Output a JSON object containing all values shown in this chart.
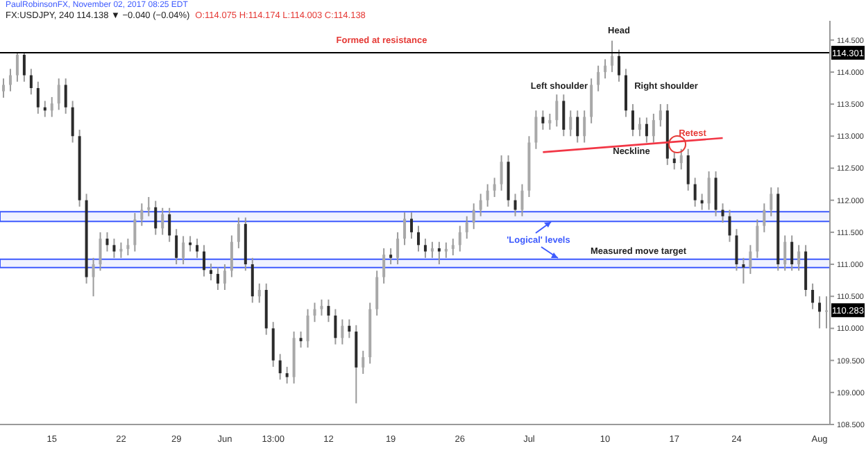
{
  "chart_data": {
    "type": "candlestick",
    "title": "FX:USDJPY, 240  114.138 ▼ −0.040 (−0.04%)",
    "subtitle": "O:114.075 H:114.174 L:114.003 C:114.138",
    "colors": [
      "#a8a8a8",
      "#a8a8a8",
      "#a8a8a8",
      "#2b2b2b",
      "#2b2b2b",
      "#2b2b2b",
      "#2b2b2b",
      "#a8a8a8",
      "#a8a8a8",
      "#2b2b2b",
      "#2b2b2b",
      "#2b2b2b",
      "#2b2b2b",
      "#a8a8a8",
      "#a8a8a8",
      "#2b2b2b",
      "#2b2b2b",
      "#a8a8a8",
      "#a8a8a8",
      "#a8a8a8",
      "#a8a8a8",
      "#a8a8a8",
      "#2b2b2b",
      "#a8a8a8",
      "#2b2b2b",
      "#2b2b2b",
      "#a8a8a8",
      "#2b2b2b",
      "#2b2b2b",
      "#2b2b2b",
      "#2b2b2b",
      "#2b2b2b",
      "#a8a8a8",
      "#a8a8a8",
      "#a8a8a8",
      "#2b2b2b",
      "#2b2b2b",
      "#a8a8a8",
      "#2b2b2b",
      "#2b2b2b",
      "#2b2b2b",
      "#2b2b2b",
      "#a8a8a8",
      "#2b2b2b",
      "#a8a8a8",
      "#a8a8a8",
      "#a8a8a8",
      "#2b2b2b",
      "#2b2b2b",
      "#a8a8a8",
      "#2b2b2b",
      "#2b2b2b",
      "#a8a8a8",
      "#a8a8a8",
      "#a8a8a8",
      "#a8a8a8",
      "#2b2b2b",
      "#a8a8a8",
      "#a8a8a8",
      "#2b2b2b",
      "#2b2b2b",
      "#2b2b2b",
      "#a8a8a8",
      "#2b2b2b",
      "#a8a8a8",
      "#a8a8a8",
      "#a8a8a8",
      "#a8a8a8",
      "#a8a8a8",
      "#a8a8a8",
      "#a8a8a8",
      "#a8a8a8",
      "#a8a8a8",
      "#2b2b2b",
      "#2b2b2b",
      "#a8a8a8",
      "#a8a8a8",
      "#a8a8a8",
      "#2b2b2b",
      "#a8a8a8",
      "#a8a8a8",
      "#2b2b2b",
      "#a8a8a8",
      "#2b2b2b",
      "#a8a8a8",
      "#a8a8a8",
      "#a8a8a8",
      "#a8a8a8",
      "#a8a8a8",
      "#2b2b2b",
      "#2b2b2b",
      "#2b2b2b",
      "#a8a8a8",
      "#2b2b2b",
      "#a8a8a8",
      "#a8a8a8",
      "#2b2b2b",
      "#2b2b2b",
      "#a8a8a8",
      "#2b2b2b",
      "#2b2b2b",
      "#2b2b2b",
      "#a8a8a8",
      "#2b2b2b",
      "#2b2b2b",
      "#2b2b2b",
      "#2b2b2b",
      "#2b2b2b",
      "#a8a8a8",
      "#a8a8a8",
      "#a8a8a8",
      "#a8a8a8",
      "#2b2b2b",
      "#a8a8a8",
      "#2b2b2b",
      "#a8a8a8",
      "#2b2b2b",
      "#2b2b2b",
      "#2b2b2b",
      "#a8a8a8"
    ],
    "categories": [
      null,
      null,
      null,
      null,
      null,
      null,
      null,
      "15",
      null,
      null,
      null,
      null,
      null,
      null,
      null,
      null,
      null,
      "22",
      null,
      null,
      null,
      null,
      null,
      null,
      null,
      "29",
      null,
      null,
      null,
      null,
      null,
      null,
      "Jun",
      null,
      null,
      null,
      null,
      null,
      null,
      "13:00",
      null,
      null,
      null,
      null,
      null,
      null,
      null,
      "12",
      null,
      null,
      null,
      null,
      null,
      null,
      null,
      null,
      "19",
      null,
      null,
      null,
      null,
      null,
      null,
      null,
      null,
      null,
      "26",
      null,
      null,
      null,
      null,
      null,
      null,
      null,
      null,
      null,
      "Jul",
      null,
      null,
      null,
      null,
      null,
      null,
      null,
      null,
      null,
      null,
      "10",
      null,
      null,
      null,
      null,
      null,
      null,
      null,
      null,
      null,
      "17",
      null,
      null,
      null,
      null,
      null,
      null,
      null,
      null,
      "24",
      null,
      null,
      null,
      null,
      null,
      null,
      null,
      null,
      null,
      null,
      null,
      "Aug",
      null
    ],
    "ohlc": [
      [
        113.7,
        113.9,
        113.6,
        113.8
      ],
      [
        113.8,
        114.05,
        113.7,
        113.95
      ],
      [
        113.95,
        114.3,
        113.85,
        114.27
      ],
      [
        114.27,
        114.3,
        113.85,
        113.95
      ],
      [
        113.95,
        114.05,
        113.65,
        113.75
      ],
      [
        113.75,
        113.85,
        113.35,
        113.45
      ],
      [
        113.45,
        113.55,
        113.3,
        113.4
      ],
      [
        113.4,
        113.61,
        113.3,
        113.51
      ],
      [
        113.51,
        113.9,
        113.41,
        113.8
      ],
      [
        113.8,
        113.9,
        113.35,
        113.45
      ],
      [
        113.45,
        113.55,
        112.9,
        113.0
      ],
      [
        113.0,
        113.1,
        111.9,
        112.0
      ],
      [
        112.0,
        112.1,
        110.7,
        110.8
      ],
      [
        110.8,
        111.1,
        110.5,
        111.0
      ],
      [
        111.0,
        111.5,
        110.9,
        111.4
      ],
      [
        111.4,
        111.5,
        111.2,
        111.3
      ],
      [
        111.3,
        111.4,
        111.1,
        111.2
      ],
      [
        111.2,
        111.34,
        111.1,
        111.24
      ],
      [
        111.24,
        111.4,
        111.14,
        111.3
      ],
      [
        111.3,
        111.8,
        111.2,
        111.7
      ],
      [
        111.7,
        111.95,
        111.6,
        111.85
      ],
      [
        111.85,
        112.05,
        111.75,
        111.89
      ],
      [
        111.89,
        111.99,
        111.46,
        111.56
      ],
      [
        111.56,
        111.88,
        111.46,
        111.78
      ],
      [
        111.78,
        111.88,
        111.35,
        111.45
      ],
      [
        111.45,
        111.55,
        111.0,
        111.1
      ],
      [
        111.1,
        111.44,
        111.0,
        111.34
      ],
      [
        111.34,
        111.44,
        111.2,
        111.3
      ],
      [
        111.3,
        111.4,
        111.1,
        111.2
      ],
      [
        111.2,
        111.3,
        110.81,
        110.91
      ],
      [
        110.91,
        111.01,
        110.75,
        110.85
      ],
      [
        110.85,
        110.95,
        110.6,
        110.7
      ],
      [
        110.7,
        111.0,
        110.6,
        110.9
      ],
      [
        110.9,
        111.45,
        110.8,
        111.35
      ],
      [
        111.35,
        111.73,
        111.25,
        111.63
      ],
      [
        111.63,
        111.73,
        110.9,
        111.0
      ],
      [
        111.0,
        111.1,
        110.4,
        110.5
      ],
      [
        110.5,
        110.7,
        110.4,
        110.6
      ],
      [
        110.6,
        110.7,
        109.9,
        110.0
      ],
      [
        110.0,
        110.1,
        109.4,
        109.5
      ],
      [
        109.5,
        109.6,
        109.2,
        109.3
      ],
      [
        109.3,
        109.4,
        109.14,
        109.24
      ],
      [
        109.24,
        109.95,
        109.14,
        109.85
      ],
      [
        109.85,
        109.95,
        109.7,
        109.8
      ],
      [
        109.8,
        110.3,
        109.7,
        110.2
      ],
      [
        110.2,
        110.4,
        110.1,
        110.3
      ],
      [
        110.3,
        110.45,
        110.2,
        110.35
      ],
      [
        110.35,
        110.45,
        110.1,
        110.2
      ],
      [
        110.2,
        110.3,
        109.75,
        109.85
      ],
      [
        109.85,
        110.14,
        109.75,
        110.04
      ],
      [
        110.04,
        110.14,
        109.85,
        109.95
      ],
      [
        109.95,
        110.05,
        108.83,
        109.39
      ],
      [
        109.39,
        109.65,
        109.29,
        109.55
      ],
      [
        109.55,
        110.4,
        109.45,
        110.3
      ],
      [
        110.3,
        110.9,
        110.2,
        110.8
      ],
      [
        110.8,
        111.25,
        110.7,
        111.15
      ],
      [
        111.15,
        111.25,
        111.0,
        111.1
      ],
      [
        111.1,
        111.5,
        111.0,
        111.4
      ],
      [
        111.4,
        111.81,
        111.3,
        111.71
      ],
      [
        111.71,
        111.81,
        111.4,
        111.5
      ],
      [
        111.5,
        111.6,
        111.2,
        111.3
      ],
      [
        111.3,
        111.4,
        111.1,
        111.2
      ],
      [
        111.2,
        111.35,
        111.1,
        111.25
      ],
      [
        111.25,
        111.35,
        111.0,
        111.2
      ],
      [
        111.2,
        111.34,
        111.1,
        111.24
      ],
      [
        111.24,
        111.4,
        111.14,
        111.3
      ],
      [
        111.3,
        111.6,
        111.2,
        111.5
      ],
      [
        111.5,
        111.75,
        111.4,
        111.65
      ],
      [
        111.65,
        111.95,
        111.55,
        111.85
      ],
      [
        111.85,
        112.1,
        111.75,
        112.0
      ],
      [
        112.0,
        112.25,
        111.9,
        112.15
      ],
      [
        112.15,
        112.35,
        112.05,
        112.25
      ],
      [
        112.25,
        112.7,
        112.15,
        112.6
      ],
      [
        112.6,
        112.7,
        111.9,
        112.0
      ],
      [
        112.0,
        112.1,
        111.75,
        111.85
      ],
      [
        111.85,
        112.25,
        111.75,
        112.15
      ],
      [
        112.15,
        113.0,
        112.05,
        112.9
      ],
      [
        112.9,
        113.4,
        112.8,
        113.3
      ],
      [
        113.3,
        113.4,
        113.1,
        113.2
      ],
      [
        113.2,
        113.35,
        113.1,
        113.25
      ],
      [
        113.25,
        113.65,
        113.15,
        113.55
      ],
      [
        113.55,
        113.65,
        113.0,
        113.1
      ],
      [
        113.1,
        113.4,
        113.0,
        113.3
      ],
      [
        113.3,
        113.4,
        112.9,
        113.0
      ],
      [
        113.0,
        113.4,
        112.9,
        113.3
      ],
      [
        113.3,
        113.9,
        113.2,
        113.8
      ],
      [
        113.8,
        114.1,
        113.7,
        114.0
      ],
      [
        114.0,
        114.2,
        113.9,
        114.1
      ],
      [
        114.1,
        114.49,
        114.0,
        114.25
      ],
      [
        114.25,
        114.35,
        113.85,
        113.95
      ],
      [
        113.95,
        114.05,
        113.3,
        113.4
      ],
      [
        113.4,
        113.5,
        113.0,
        113.1
      ],
      [
        113.1,
        113.29,
        113.0,
        113.19
      ],
      [
        113.19,
        113.29,
        112.9,
        113.0
      ],
      [
        113.0,
        113.35,
        112.9,
        113.25
      ],
      [
        113.25,
        113.5,
        113.15,
        113.4
      ],
      [
        113.4,
        113.5,
        112.55,
        112.65
      ],
      [
        112.65,
        112.75,
        112.48,
        112.58
      ],
      [
        112.58,
        112.8,
        112.48,
        112.7
      ],
      [
        112.7,
        112.8,
        112.15,
        112.25
      ],
      [
        112.25,
        112.35,
        111.9,
        112.0
      ],
      [
        112.0,
        112.1,
        111.85,
        111.95
      ],
      [
        111.95,
        112.45,
        111.85,
        112.35
      ],
      [
        112.35,
        112.45,
        111.75,
        111.85
      ],
      [
        111.85,
        111.95,
        111.65,
        111.75
      ],
      [
        111.75,
        111.85,
        111.35,
        111.45
      ],
      [
        111.45,
        111.55,
        110.9,
        111.0
      ],
      [
        111.0,
        111.1,
        110.7,
        110.95
      ],
      [
        110.95,
        111.3,
        110.85,
        111.2
      ],
      [
        111.2,
        111.7,
        111.1,
        111.6
      ],
      [
        111.6,
        111.95,
        111.5,
        111.85
      ],
      [
        111.85,
        112.2,
        111.75,
        112.1
      ],
      [
        112.1,
        112.2,
        110.9,
        111.0
      ],
      [
        111.0,
        111.45,
        110.9,
        111.35
      ],
      [
        111.35,
        111.45,
        110.9,
        111.0
      ],
      [
        111.0,
        111.3,
        110.9,
        111.2
      ],
      [
        111.2,
        111.3,
        110.5,
        110.6
      ],
      [
        110.6,
        110.7,
        110.3,
        110.4
      ],
      [
        110.4,
        110.5,
        110.0,
        110.26
      ],
      [
        110.26,
        110.5,
        110.0,
        110.28
      ]
    ],
    "series": [
      {
        "type": "line",
        "color": "#f23645",
        "values": [
          null,
          null,
          null,
          null,
          null,
          null,
          null,
          null,
          null,
          null,
          null,
          null,
          null,
          null,
          null,
          null,
          null,
          null,
          null,
          null,
          null,
          null,
          null,
          null,
          null,
          null,
          null,
          null,
          null,
          null,
          null,
          null,
          null,
          null,
          null,
          null,
          null,
          null,
          null,
          null,
          null,
          null,
          null,
          null,
          null,
          null,
          null,
          null,
          null,
          null,
          null,
          null,
          null,
          null,
          null,
          null,
          null,
          null,
          null,
          null,
          null,
          null,
          null,
          null,
          null,
          null,
          null,
          null,
          null,
          null,
          null,
          null,
          null,
          null,
          null,
          null,
          null,
          null,
          112.75,
          null,
          null,
          null,
          null,
          null,
          null,
          null,
          null,
          null,
          null,
          null,
          null,
          null,
          null,
          null,
          null,
          null,
          null,
          null,
          null,
          null,
          null,
          null,
          null,
          null,
          112.97,
          null,
          null,
          null,
          null,
          null,
          null,
          null,
          null,
          null,
          null,
          null,
          null,
          null,
          null,
          null
        ]
      }
    ],
    "ylim": [
      108.5,
      114.8
    ],
    "yticks": [
      {
        "value": 108.5,
        "label": "108.500"
      },
      {
        "value": 109,
        "label": "109.000"
      },
      {
        "value": 109.5,
        "label": "109.500"
      },
      {
        "value": 110,
        "label": "110.000"
      },
      {
        "value": 110.5,
        "label": "110.500"
      },
      {
        "value": 111,
        "label": "111.000"
      },
      {
        "value": 111.5,
        "label": "111.500"
      },
      {
        "value": 112,
        "label": "112.000"
      },
      {
        "value": 112.5,
        "label": "112.500"
      },
      {
        "value": 113,
        "label": "113.000"
      },
      {
        "value": 113.5,
        "label": "113.500"
      },
      {
        "value": 114,
        "label": "114.000"
      },
      {
        "value": 114.5,
        "label": "114.500"
      }
    ],
    "ref_lines": [
      {
        "axis": "y",
        "value": 114.301,
        "label": "114.301",
        "color": "#000000"
      }
    ],
    "bands": [
      {
        "axis": "y",
        "from": 111.67,
        "to": 111.82,
        "color": "#3d5afe"
      },
      {
        "axis": "y",
        "from": 110.95,
        "to": 111.08,
        "color": "#3d5afe"
      }
    ],
    "annotations": [
      "PaulRobinsonFX, November 02, 2017 08:25 EDT",
      "Formed at resistance",
      "Head",
      "Left shoulder",
      "Right shoulder",
      "Neckline",
      "Retest",
      "'Logical' levels",
      "Measured move target",
      {
        "text": "110.283",
        "y": 110.283
      }
    ],
    "tick_labels": true,
    "grid": false,
    "legend": false
  }
}
